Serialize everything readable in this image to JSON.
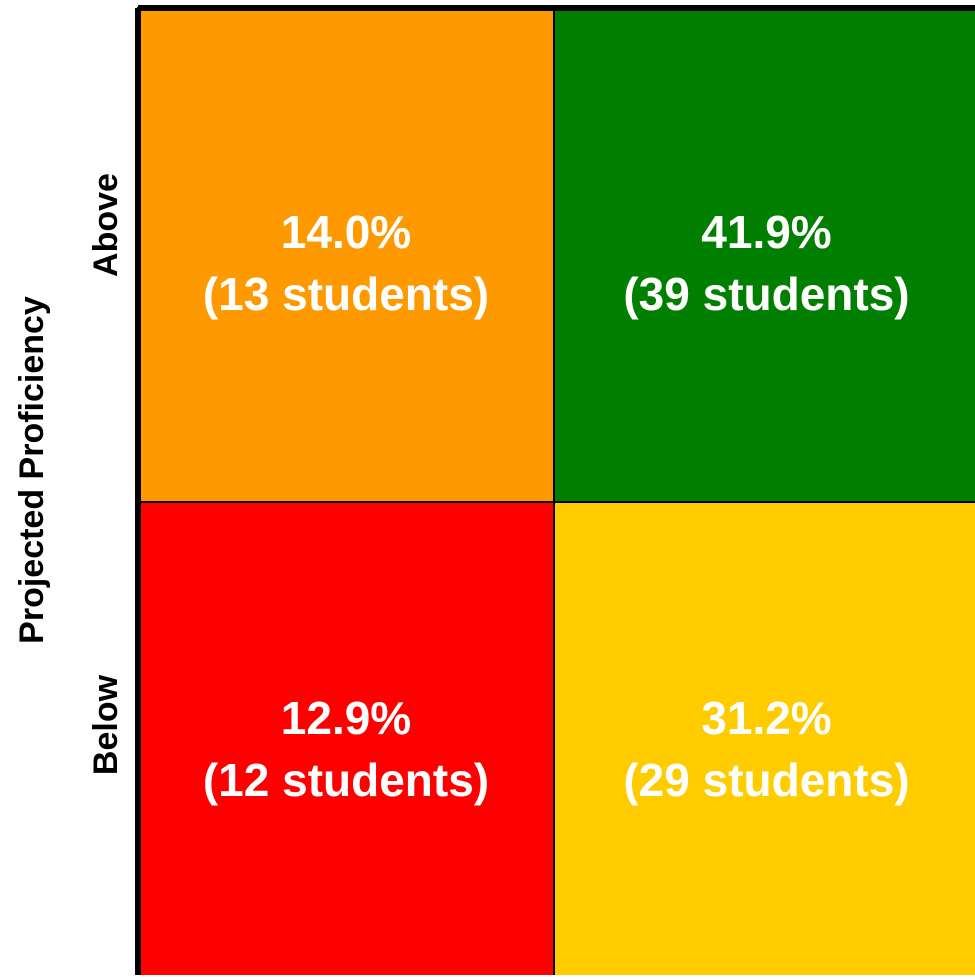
{
  "chart_data": {
    "type": "heatmap",
    "ylabel": "Projected Proficiency",
    "row_labels": [
      "Above",
      "Below"
    ],
    "columns": 2,
    "cells": [
      {
        "row": "Above",
        "col": 0,
        "percent": "14.0%",
        "count_label": "(13 students)",
        "value": 14.0,
        "students": 13,
        "color": "#ff9900"
      },
      {
        "row": "Above",
        "col": 1,
        "percent": "41.9%",
        "count_label": "(39 students)",
        "value": 41.9,
        "students": 39,
        "color": "#007f00"
      },
      {
        "row": "Below",
        "col": 0,
        "percent": "12.9%",
        "count_label": "(12 students)",
        "value": 12.9,
        "students": 12,
        "color": "#ff0000"
      },
      {
        "row": "Below",
        "col": 1,
        "percent": "31.2%",
        "count_label": "(29 students)",
        "value": 31.2,
        "students": 29,
        "color": "#ffcc00"
      }
    ],
    "text_color": "#ffffff",
    "border_color": "#000000"
  }
}
